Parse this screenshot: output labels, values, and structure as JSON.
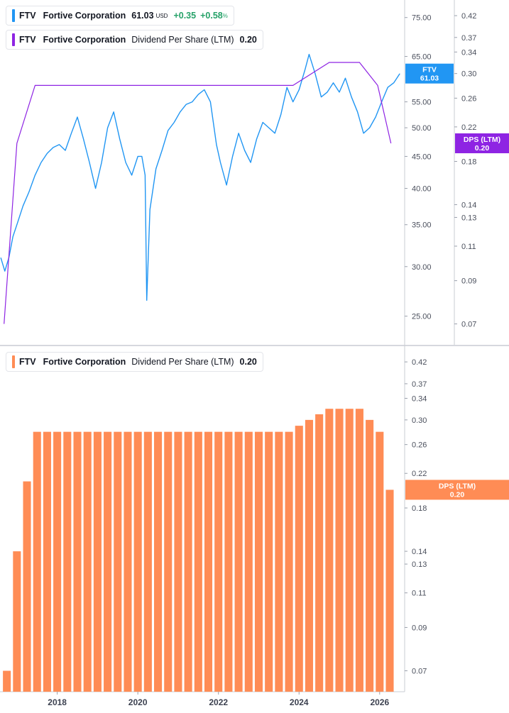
{
  "legend": {
    "price": {
      "ticker": "FTV",
      "company": "Fortive Corporation",
      "price": "61.03",
      "currency": "USD",
      "change": "+0.35",
      "change_pct": "+0.58",
      "pct_sign": "%",
      "color": "#2196f3"
    },
    "dps_top": {
      "ticker": "FTV",
      "company": "Fortive Corporation",
      "metric": "Dividend Per Share (LTM)",
      "value": "0.20",
      "color": "#8e24e3"
    },
    "dps_bottom": {
      "ticker": "FTV",
      "company": "Fortive Corporation",
      "metric": "Dividend Per Share (LTM)",
      "value": "0.20",
      "color": "#ff8c55"
    }
  },
  "chart_data": [
    {
      "type": "line",
      "series": [
        {
          "name": "FTV",
          "color": "#2196f3",
          "x": [
            2016.6,
            2016.7,
            2016.8,
            2016.9,
            2017.0,
            2017.15,
            2017.3,
            2017.45,
            2017.6,
            2017.75,
            2017.9,
            2018.05,
            2018.2,
            2018.35,
            2018.5,
            2018.65,
            2018.8,
            2018.95,
            2019.1,
            2019.25,
            2019.4,
            2019.55,
            2019.7,
            2019.85,
            2020.0,
            2020.1,
            2020.18,
            2020.22,
            2020.3,
            2020.45,
            2020.6,
            2020.75,
            2020.9,
            2021.05,
            2021.2,
            2021.35,
            2021.5,
            2021.65,
            2021.8,
            2021.95,
            2022.05,
            2022.2,
            2022.35,
            2022.5,
            2022.65,
            2022.8,
            2022.95,
            2023.1,
            2023.25,
            2023.4,
            2023.55,
            2023.7,
            2023.85,
            2024.0,
            2024.15,
            2024.25,
            2024.4,
            2024.55,
            2024.7,
            2024.85,
            2025.0,
            2025.15,
            2025.3,
            2025.45,
            2025.6,
            2025.75,
            2025.9,
            2026.05,
            2026.2,
            2026.35,
            2026.5
          ],
          "values": [
            31.0,
            29.5,
            31.0,
            33.5,
            35.0,
            37.5,
            39.5,
            42.0,
            44.0,
            45.5,
            46.5,
            47.0,
            46.0,
            49.0,
            52.0,
            48.0,
            44.0,
            40.0,
            44.0,
            50.0,
            53.0,
            48.0,
            44.0,
            42.0,
            45.0,
            45.0,
            42.0,
            26.5,
            37.0,
            43.0,
            46.0,
            49.5,
            51.0,
            53.0,
            54.5,
            55.0,
            56.5,
            57.5,
            55.0,
            47.0,
            44.0,
            40.5,
            45.0,
            49.0,
            46.0,
            44.0,
            48.0,
            51.0,
            50.0,
            49.0,
            52.5,
            58.0,
            55.0,
            57.5,
            62.0,
            65.5,
            61.0,
            56.0,
            57.0,
            59.0,
            57.0,
            60.0,
            56.0,
            53.0,
            49.0,
            50.0,
            52.0,
            55.0,
            58.0,
            59.0,
            61.03
          ]
        }
      ],
      "ylim": [
        22.5,
        80
      ],
      "scale": "log",
      "yticks": [
        "75.00",
        "65.00",
        "55.00",
        "50.00",
        "45.00",
        "40.00",
        "35.00",
        "30.00",
        "25.00"
      ],
      "last_label": {
        "name": "FTV",
        "value": "61.03"
      }
    },
    {
      "type": "line",
      "series": [
        {
          "name": "DPS (LTM)",
          "color": "#8e24e3",
          "x": [
            2016.68,
            2017.0,
            2017.45,
            2023.85,
            2024.75,
            2025.5,
            2025.95,
            2026.28
          ],
          "values": [
            0.07,
            0.2,
            0.28,
            0.28,
            0.32,
            0.32,
            0.28,
            0.2
          ]
        }
      ],
      "ylim": [
        0.062,
        0.46
      ],
      "scale": "log",
      "yticks": [
        "0.42",
        "0.37",
        "0.34",
        "0.30",
        "0.26",
        "0.22",
        "0.18",
        "0.14",
        "0.13",
        "0.11",
        "0.09",
        "0.07"
      ],
      "last_label": {
        "name": "DPS (LTM)",
        "value": "0.20"
      }
    },
    {
      "type": "bar",
      "series": [
        {
          "name": "DPS (LTM)",
          "color": "#ff8c55",
          "x": [
            2016.75,
            2017.0,
            2017.25,
            2017.5,
            2017.75,
            2018.0,
            2018.25,
            2018.5,
            2018.75,
            2019.0,
            2019.25,
            2019.5,
            2019.75,
            2020.0,
            2020.25,
            2020.5,
            2020.75,
            2021.0,
            2021.25,
            2021.5,
            2021.75,
            2022.0,
            2022.25,
            2022.5,
            2022.75,
            2023.0,
            2023.25,
            2023.5,
            2023.75,
            2024.0,
            2024.25,
            2024.5,
            2024.75,
            2025.0,
            2025.25,
            2025.5,
            2025.75,
            2026.0,
            2026.25
          ],
          "values": [
            0.07,
            0.14,
            0.21,
            0.28,
            0.28,
            0.28,
            0.28,
            0.28,
            0.28,
            0.28,
            0.28,
            0.28,
            0.28,
            0.28,
            0.28,
            0.28,
            0.28,
            0.28,
            0.28,
            0.28,
            0.28,
            0.28,
            0.28,
            0.28,
            0.28,
            0.28,
            0.28,
            0.28,
            0.28,
            0.29,
            0.3,
            0.31,
            0.32,
            0.32,
            0.32,
            0.32,
            0.3,
            0.28,
            0.2
          ]
        }
      ],
      "ylim": [
        0.062,
        0.46
      ],
      "scale": "log",
      "yticks": [
        "0.42",
        "0.37",
        "0.34",
        "0.30",
        "0.26",
        "0.22",
        "0.18",
        "0.14",
        "0.13",
        "0.11",
        "0.09",
        "0.07"
      ],
      "last_label": {
        "name": "DPS (LTM)",
        "value": "0.20"
      }
    }
  ],
  "x_axis": {
    "ticks": [
      "2018",
      "2020",
      "2022",
      "2024",
      "2026"
    ],
    "tick_values": [
      2018,
      2020,
      2022,
      2024,
      2026
    ],
    "xlim": [
      2016.58,
      2026.62
    ]
  }
}
